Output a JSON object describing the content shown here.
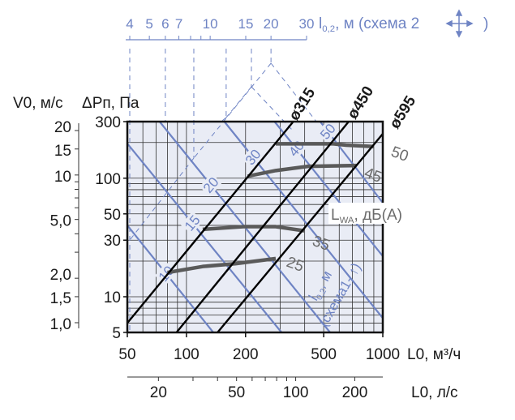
{
  "chart_data": {
    "type": "line",
    "x_axis": {
      "label": "L0, м³/ч",
      "label_main": "L",
      "label_sub": "0",
      "label_unit": ", м³/ч",
      "scale": "log",
      "range": [
        50,
        1000
      ],
      "ticks": [
        "50",
        "100",
        "200",
        "500",
        "1000"
      ]
    },
    "x2_axis": {
      "label": "L0, л/с",
      "label_main": "L",
      "label_sub": "0",
      "label_unit": ", л/с",
      "scale": "log",
      "ticks": [
        "20",
        "50",
        "100",
        "200"
      ],
      "minor_ticks": [
        30,
        40,
        60,
        70,
        80,
        90
      ]
    },
    "y_axis": {
      "label": "ΔPп, Па",
      "label_main": "ΔP",
      "label_sub": "п",
      "label_unit": ", Па",
      "scale": "log",
      "range": [
        5,
        300
      ],
      "ticks": [
        "300",
        "100",
        "50",
        "30",
        "10",
        "5"
      ]
    },
    "y2_axis": {
      "label": "V0, м/с",
      "label_main": "V",
      "label_sub": "0",
      "label_unit": ", м/с",
      "scale": "log",
      "ticks": [
        "20",
        "15",
        "10",
        "5,0",
        "2,0",
        "1,5",
        "1,0"
      ]
    },
    "top_axis": {
      "label_main": "l",
      "label_sub": "0,2",
      "label_unit": ", м (схема 2",
      "label_close": ")",
      "scale": "log",
      "ticks": [
        "4",
        "5",
        "6",
        "7",
        "10",
        "15",
        "20",
        "30"
      ],
      "minor_ticks": [
        8,
        9
      ]
    },
    "grid": true,
    "diameter_series": [
      {
        "name": "ø315",
        "points": [
          [
            50,
            6
          ],
          [
            350,
            300
          ]
        ]
      },
      {
        "name": "ø450",
        "points": [
          [
            89,
            5
          ],
          [
            670,
            300
          ]
        ]
      },
      {
        "name": "ø595",
        "points": [
          [
            144,
            5
          ],
          [
            1000,
            237
          ]
        ]
      }
    ],
    "noise_series": {
      "label_main": "L",
      "label_sub": "WA",
      "label_unit": ", дБ(А)",
      "curves": [
        {
          "name": "50",
          "points": [
            [
              285,
              195
            ],
            [
              560,
              195
            ],
            [
              650,
              190
            ],
            [
              900,
              185
            ]
          ]
        },
        {
          "name": "45",
          "points": [
            [
              205,
              104
            ],
            [
              285,
              116
            ],
            [
              417,
              126
            ],
            [
              734,
              128
            ]
          ]
        },
        {
          "name": "35",
          "points": [
            [
              121,
              37
            ],
            [
              195,
              39
            ],
            [
              285,
              39
            ],
            [
              398,
              36
            ]
          ]
        },
        {
          "name": "25",
          "points": [
            [
              80,
              16
            ],
            [
              121,
              18
            ],
            [
              177,
              19
            ],
            [
              285,
              21
            ]
          ]
        }
      ]
    },
    "throw_series": {
      "label_main": "l",
      "label_sub": "0,2",
      "label_unit": ", м",
      "label_scheme": "(схема1- ↑)",
      "lines": [
        {
          "name": "10",
          "points": [
            [
              50,
              40
            ],
            [
              137,
              5
            ]
          ]
        },
        {
          "name": "15",
          "points": [
            [
              50,
              196
            ],
            [
              305,
              5
            ]
          ]
        },
        {
          "name": "20",
          "points": [
            [
              73,
              300
            ],
            [
              539,
              5
            ]
          ]
        },
        {
          "name": "30",
          "points": [
            [
              156,
              300
            ],
            [
              1000,
              6.6
            ]
          ]
        },
        {
          "name": "40",
          "points": [
            [
              281,
              300
            ],
            [
              1000,
              22
            ]
          ]
        },
        {
          "name": "50",
          "points": [
            [
              480,
              300
            ],
            [
              1000,
              62
            ]
          ]
        }
      ]
    },
    "colors": {
      "plot_bg": "#e9ecf5",
      "throw": "#6f84c4",
      "noise": "#5a5a5a",
      "diameter": "#000000",
      "grid": "#333333"
    }
  }
}
